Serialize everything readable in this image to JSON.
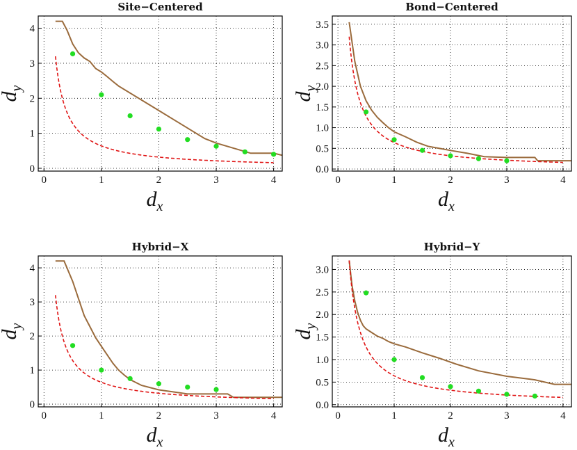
{
  "chart_data": [
    {
      "type": "line",
      "title": "Site−Centered",
      "xlabel": "d",
      "xlabel_sub": "x",
      "ylabel": "d",
      "ylabel_sub": "y",
      "xlim": [
        -0.1,
        4.15
      ],
      "ylim": [
        -0.08,
        4.35
      ],
      "xticks": [
        0,
        1,
        2,
        3,
        4
      ],
      "yticks": [
        0,
        1,
        2,
        3,
        4
      ],
      "ytick_labels": [
        "0",
        "1",
        "2",
        "3",
        "4"
      ],
      "series": [
        {
          "name": "brown-curve",
          "style": "solid",
          "color": "#9a6b3c",
          "x": [
            0.2,
            0.32,
            0.4,
            0.5,
            0.6,
            0.7,
            0.8,
            0.9,
            1.0,
            1.1,
            1.2,
            1.3,
            2.0,
            2.8,
            3.0,
            3.6,
            4.0,
            4.15
          ],
          "y": [
            4.2,
            4.2,
            3.95,
            3.55,
            3.3,
            3.15,
            3.05,
            2.85,
            2.75,
            2.62,
            2.48,
            2.35,
            1.65,
            0.85,
            0.72,
            0.43,
            0.43,
            0.37
          ]
        },
        {
          "name": "red-dashed-curve",
          "style": "dashed",
          "color": "#e01515",
          "fn": "0.64/x",
          "x_range": [
            0.2,
            4.0
          ]
        },
        {
          "name": "green-points",
          "style": "points",
          "color": "#22dd22",
          "x": [
            0.5,
            1.0,
            1.5,
            2.0,
            2.5,
            3.0,
            3.5,
            4.0
          ],
          "y": [
            3.27,
            2.1,
            1.5,
            1.12,
            0.82,
            0.63,
            0.47,
            0.4
          ]
        }
      ]
    },
    {
      "type": "line",
      "title": "Bond−Centered",
      "xlabel": "d",
      "xlabel_sub": "x",
      "ylabel": "d",
      "ylabel_sub": "y",
      "xlim": [
        -0.1,
        4.15
      ],
      "ylim": [
        -0.05,
        3.7
      ],
      "xticks": [
        0,
        1,
        2,
        3,
        4
      ],
      "yticks": [
        0,
        0.5,
        1,
        1.5,
        2,
        2.5,
        3,
        3.5
      ],
      "ytick_labels": [
        "0.0",
        "0.5",
        "1.0",
        "1.5",
        "2.0",
        "2.5",
        "3.0",
        "3.5"
      ],
      "series": [
        {
          "name": "brown-curve",
          "style": "solid",
          "color": "#9a6b3c",
          "x": [
            0.2,
            0.3,
            0.4,
            0.5,
            0.6,
            0.7,
            0.8,
            0.9,
            1.0,
            1.2,
            1.4,
            1.6,
            2.0,
            2.3,
            2.6,
            3.0,
            3.5,
            3.55,
            4.15
          ],
          "y": [
            3.55,
            2.6,
            2.0,
            1.65,
            1.42,
            1.25,
            1.12,
            1.0,
            0.9,
            0.78,
            0.65,
            0.55,
            0.45,
            0.38,
            0.3,
            0.28,
            0.28,
            0.2,
            0.2
          ]
        },
        {
          "name": "red-dashed-curve",
          "style": "dashed",
          "color": "#e01515",
          "fn": "0.64/x",
          "x_range": [
            0.2,
            4.0
          ]
        },
        {
          "name": "green-points",
          "style": "points",
          "color": "#22dd22",
          "x": [
            0.5,
            1.0,
            1.5,
            2.0,
            2.5,
            3.0
          ],
          "y": [
            1.38,
            0.71,
            0.45,
            0.32,
            0.25,
            0.2
          ]
        }
      ]
    },
    {
      "type": "line",
      "title": "Hybrid−X",
      "xlabel": "d",
      "xlabel_sub": "x",
      "ylabel": "d",
      "ylabel_sub": "y",
      "xlim": [
        -0.1,
        4.15
      ],
      "ylim": [
        -0.08,
        4.35
      ],
      "xticks": [
        0,
        1,
        2,
        3,
        4
      ],
      "yticks": [
        0,
        1,
        2,
        3,
        4
      ],
      "ytick_labels": [
        "0",
        "1",
        "2",
        "3",
        "4"
      ],
      "series": [
        {
          "name": "brown-curve",
          "style": "solid",
          "color": "#9a6b3c",
          "x": [
            0.2,
            0.35,
            0.5,
            0.7,
            0.9,
            1.0,
            1.1,
            1.2,
            1.3,
            1.4,
            1.5,
            1.7,
            2.0,
            2.5,
            3.2,
            3.3,
            4.15
          ],
          "y": [
            4.2,
            4.2,
            3.6,
            2.6,
            1.95,
            1.7,
            1.45,
            1.2,
            1.0,
            0.85,
            0.72,
            0.55,
            0.42,
            0.3,
            0.3,
            0.2,
            0.2
          ]
        },
        {
          "name": "red-dashed-curve",
          "style": "dashed",
          "color": "#e01515",
          "fn": "0.64/x",
          "x_range": [
            0.2,
            4.0
          ]
        },
        {
          "name": "green-points",
          "style": "points",
          "color": "#22dd22",
          "x": [
            0.5,
            1.0,
            1.5,
            2.0,
            2.5,
            3.0
          ],
          "y": [
            1.72,
            1.0,
            0.75,
            0.6,
            0.5,
            0.43
          ]
        }
      ]
    },
    {
      "type": "line",
      "title": "Hybrid−Y",
      "xlabel": "d",
      "xlabel_sub": "x",
      "ylabel": "d",
      "ylabel_sub": "y",
      "xlim": [
        -0.1,
        4.15
      ],
      "ylim": [
        -0.05,
        3.3
      ],
      "xticks": [
        0,
        1,
        2,
        3,
        4
      ],
      "yticks": [
        0,
        0.5,
        1,
        1.5,
        2,
        2.5,
        3
      ],
      "ytick_labels": [
        "0.0",
        "0.5",
        "1.0",
        "1.5",
        "2.0",
        "2.5",
        "3.0"
      ],
      "series": [
        {
          "name": "brown-curve",
          "style": "solid",
          "color": "#9a6b3c",
          "x": [
            0.2,
            0.25,
            0.3,
            0.35,
            0.4,
            0.45,
            0.5,
            0.6,
            0.7,
            0.8,
            0.9,
            1.0,
            1.2,
            1.5,
            1.8,
            2.1,
            2.5,
            3.0,
            3.5,
            3.85,
            4.15
          ],
          "y": [
            3.2,
            2.65,
            2.3,
            2.05,
            1.87,
            1.75,
            1.68,
            1.6,
            1.52,
            1.47,
            1.4,
            1.35,
            1.28,
            1.15,
            1.03,
            0.9,
            0.75,
            0.63,
            0.55,
            0.45,
            0.45
          ]
        },
        {
          "name": "red-dashed-curve",
          "style": "dashed",
          "color": "#e01515",
          "fn": "0.64/x",
          "x_range": [
            0.2,
            4.0
          ]
        },
        {
          "name": "green-points",
          "style": "points",
          "color": "#22dd22",
          "x": [
            0.5,
            1.0,
            1.5,
            2.0,
            2.5,
            3.0,
            3.5
          ],
          "y": [
            2.48,
            1.0,
            0.6,
            0.4,
            0.3,
            0.23,
            0.19
          ]
        }
      ]
    }
  ]
}
